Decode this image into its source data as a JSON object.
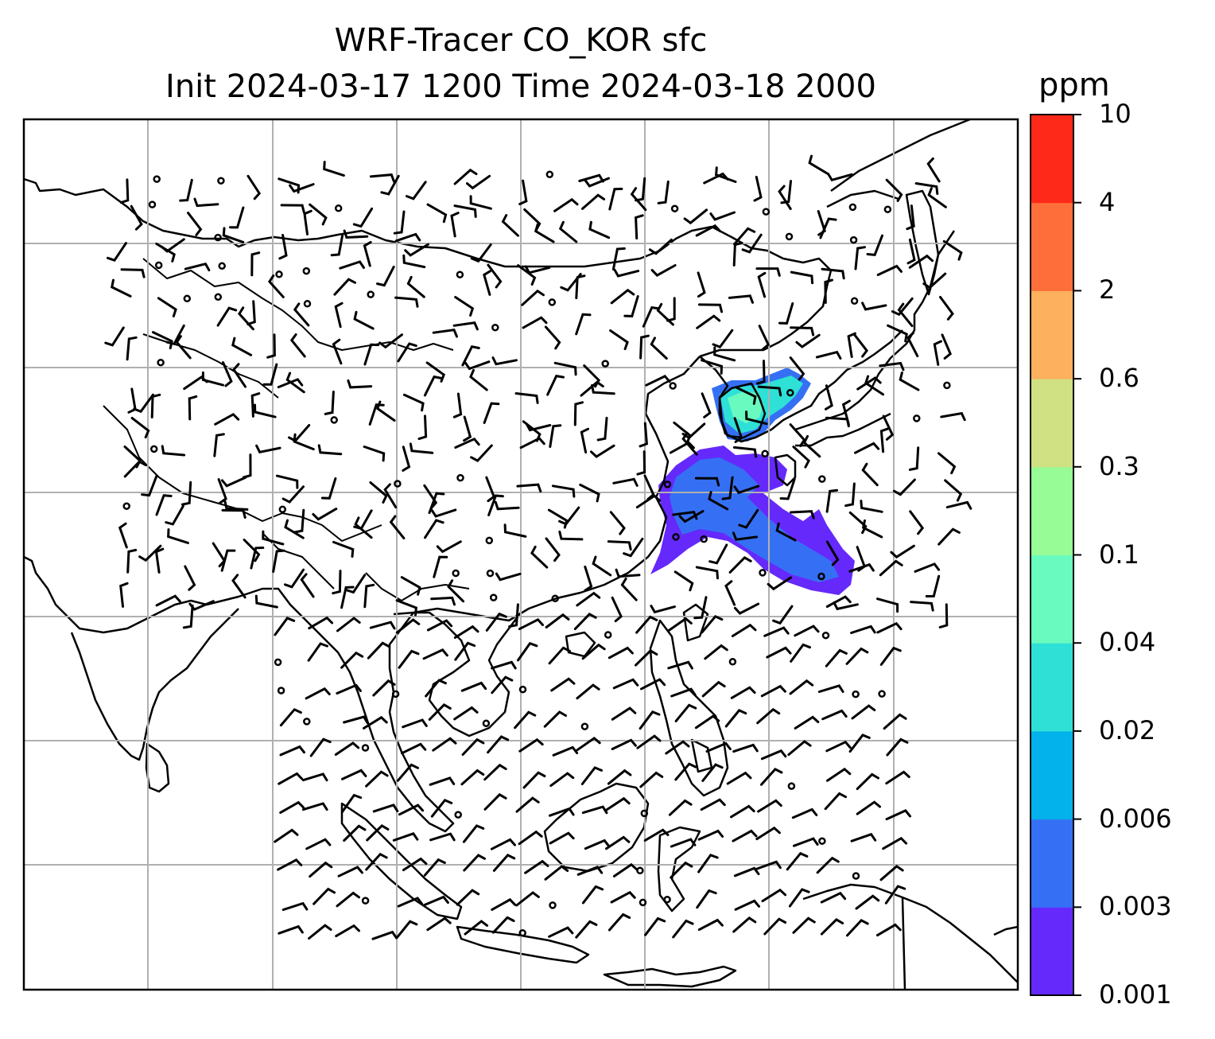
{
  "title": {
    "line1": "WRF-Tracer CO_KOR sfc",
    "line2": "Init 2024-03-17 1200 Time 2024-03-18 2000"
  },
  "colorbar": {
    "unit": "ppm",
    "levels": [
      "0.001",
      "0.003",
      "0.006",
      "0.02",
      "0.04",
      "0.1",
      "0.3",
      "0.6",
      "2",
      "4",
      "10"
    ],
    "colors": [
      "#6529fb",
      "#3570f4",
      "#03b1eb",
      "#2ee0d6",
      "#69fac0",
      "#97fb96",
      "#cfe182",
      "#fdb05e",
      "#fe6e3a",
      "#ff2919"
    ]
  },
  "map": {
    "land_line_color": "#000000",
    "grid_line_color": "#b0b0b0",
    "plume_primary_color": "#6529fb",
    "plume_secondary_color": "#3570f4",
    "plume_core_color": "#2ee0d6",
    "plume_peak_color": "#69fac0"
  }
}
